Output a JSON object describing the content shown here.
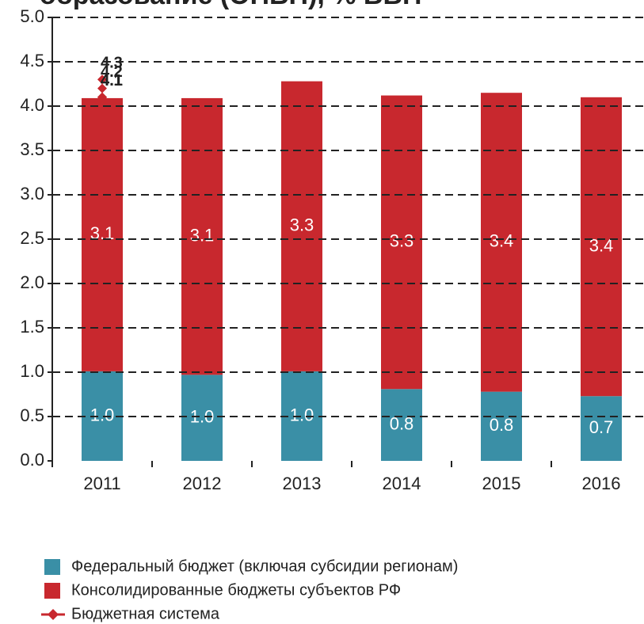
{
  "chart_data": {
    "type": "stacked_bar",
    "title": "образование (ОПБН), % ВВП",
    "categories": [
      "2011",
      "2012",
      "2013",
      "2014",
      "2015",
      "2016"
    ],
    "series": [
      {
        "name": "Федеральный бюджет (включая субсидии регионам)",
        "color": "#3a8fa6",
        "values": [
          1.01,
          0.97,
          1.01,
          0.81,
          0.78,
          0.73
        ],
        "value_labels": [
          "1.0",
          "1.0",
          "1.0",
          "0.8",
          "0.8",
          "0.7"
        ]
      },
      {
        "name": "Консолидированные бюджеты субъектов РФ",
        "color": "#c8282e",
        "values": [
          3.08,
          3.12,
          3.27,
          3.31,
          3.37,
          3.37
        ],
        "value_labels": [
          "3.1",
          "3.1",
          "3.3",
          "3.3",
          "3.4",
          "3.4"
        ]
      },
      {
        "name": "Бюджетная система",
        "color": "#c8282e",
        "type": "line",
        "x": [
          "2011",
          "2011",
          "2011",
          "2011",
          "2011",
          "2011"
        ],
        "values": [
          4.1,
          4.1,
          4.3,
          4.1,
          4.2,
          4.1
        ]
      }
    ],
    "ylim": [
      0,
      5
    ],
    "yticks": [
      {
        "value": 0,
        "label": "0.0"
      },
      0.5,
      {
        "value": 1,
        "label": "1.0"
      },
      1.5,
      {
        "value": 2,
        "label": "2.0"
      },
      2.5,
      {
        "value": 3,
        "label": "3.0"
      },
      3.5,
      {
        "value": 4,
        "label": "4.0"
      },
      4.5,
      {
        "value": 5,
        "label": "5.0"
      }
    ],
    "grid": true
  }
}
